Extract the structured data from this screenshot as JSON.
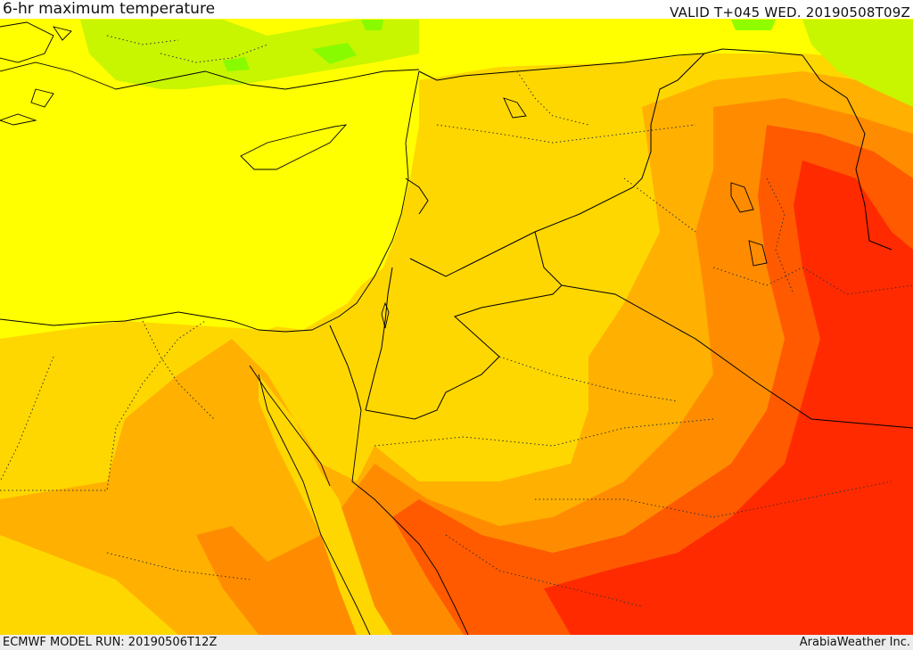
{
  "header": {
    "title": "6-hr maximum temperature",
    "valid": "VALID T+045 WED. 20190508T09Z"
  },
  "footer": {
    "model_run": "ECMWF MODEL RUN: 20190506T12Z",
    "credit": "ArabiaWeather Inc."
  },
  "map": {
    "field": "6-hr maximum temperature",
    "colors": {
      "green": "#7CFC00",
      "yellow_green": "#C8F500",
      "yellow": "#FFFF00",
      "light_orange": "#FFD700",
      "orange": "#FFB000",
      "dark_orange": "#FF8C00",
      "red_orange": "#FF5A00",
      "red": "#FF2A00"
    }
  }
}
